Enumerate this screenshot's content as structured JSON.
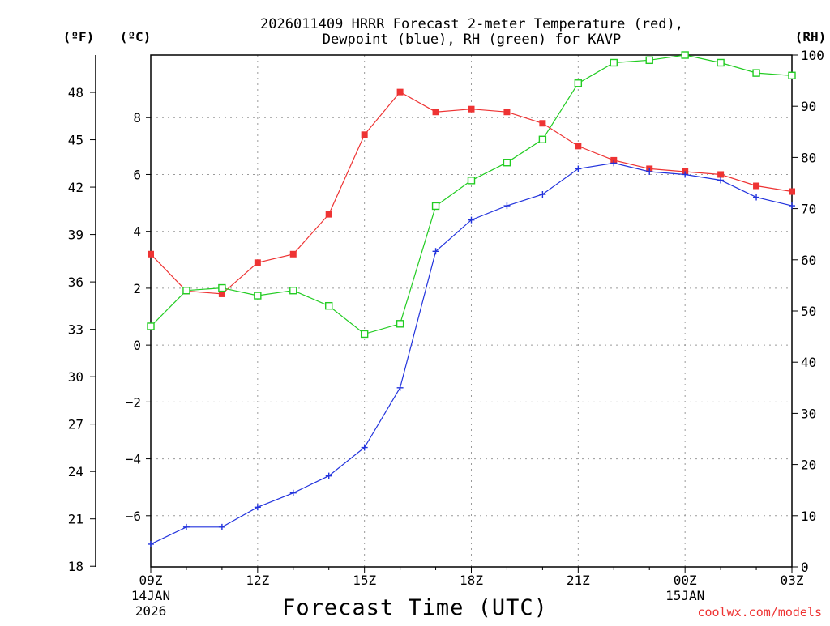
{
  "title": {
    "line1": "2026011409 HRRR Forecast 2-meter Temperature (red),",
    "line2": "Dewpoint (blue), RH (green) for KAVP"
  },
  "credit": "coolwx.com/models",
  "colors": {
    "temperature": "#ee3333",
    "dewpoint": "#2233dd",
    "rh": "#22cc22",
    "axis": "#000000",
    "grid": "#9a9a9a"
  },
  "chart_data": {
    "type": "line",
    "title": "2026011409 HRRR Forecast 2-meter Temperature (red), Dewpoint (blue), RH (green) for KAVP",
    "xlabel": "Forecast Time (UTC)",
    "x_hours": [
      0,
      1,
      2,
      3,
      4,
      5,
      6,
      7,
      8,
      9,
      10,
      11,
      12,
      13,
      14,
      15,
      16,
      17,
      18
    ],
    "x_ticks": [
      {
        "hour": 0,
        "label": "09Z",
        "sub1": "14JAN",
        "sub2": "2026"
      },
      {
        "hour": 3,
        "label": "12Z",
        "sub1": "",
        "sub2": ""
      },
      {
        "hour": 6,
        "label": "15Z",
        "sub1": "",
        "sub2": ""
      },
      {
        "hour": 9,
        "label": "18Z",
        "sub1": "",
        "sub2": ""
      },
      {
        "hour": 12,
        "label": "21Z",
        "sub1": "",
        "sub2": ""
      },
      {
        "hour": 15,
        "label": "00Z",
        "sub1": "15JAN",
        "sub2": ""
      },
      {
        "hour": 18,
        "label": "03Z",
        "sub1": "",
        "sub2": ""
      }
    ],
    "y_celsius": {
      "unit_label": "(ºC)",
      "range": [
        -7.8,
        10.2
      ],
      "ticks": [
        -6,
        -4,
        -2,
        0,
        2,
        4,
        6,
        8
      ],
      "tick_labels": [
        "−6",
        "−4",
        "−2",
        "0",
        "2",
        "4",
        "6",
        "8"
      ]
    },
    "y_fahrenheit": {
      "unit_label": "(ºF)",
      "ticks": [
        18,
        21,
        24,
        27,
        30,
        33,
        36,
        39,
        42,
        45,
        48
      ],
      "tick_labels": [
        "18",
        "21",
        "24",
        "27",
        "30",
        "33",
        "36",
        "39",
        "42",
        "45",
        "48"
      ]
    },
    "y_rh": {
      "unit_label": "(RH)",
      "range": [
        0,
        100
      ],
      "ticks": [
        0,
        10,
        20,
        30,
        40,
        50,
        60,
        70,
        80,
        90,
        100
      ],
      "tick_labels": [
        "0",
        "10",
        "20",
        "30",
        "40",
        "50",
        "60",
        "70",
        "80",
        "90",
        "100"
      ]
    },
    "series": [
      {
        "name": "2-meter Temperature",
        "color": "red",
        "axis": "celsius",
        "marker": "filled-square",
        "values": [
          3.2,
          1.9,
          1.8,
          2.9,
          3.2,
          4.6,
          7.4,
          8.9,
          8.2,
          8.3,
          8.2,
          7.8,
          7.0,
          6.5,
          6.2,
          6.1,
          6.0,
          5.6,
          5.4
        ]
      },
      {
        "name": "Dewpoint",
        "color": "blue",
        "axis": "celsius",
        "marker": "plus",
        "values": [
          -7.0,
          -6.4,
          -6.4,
          -5.7,
          -5.2,
          -4.6,
          -3.6,
          -1.5,
          3.3,
          4.4,
          4.9,
          5.3,
          6.2,
          6.4,
          6.1,
          6.0,
          5.8,
          5.2,
          4.9
        ]
      },
      {
        "name": "RH",
        "color": "green",
        "axis": "rh",
        "marker": "open-square",
        "values": [
          47,
          54,
          54.5,
          53,
          54,
          51,
          45.5,
          47.5,
          70.5,
          75.5,
          79,
          83.5,
          94.5,
          98.5,
          99,
          100,
          98.5,
          96.5,
          96
        ]
      }
    ]
  }
}
